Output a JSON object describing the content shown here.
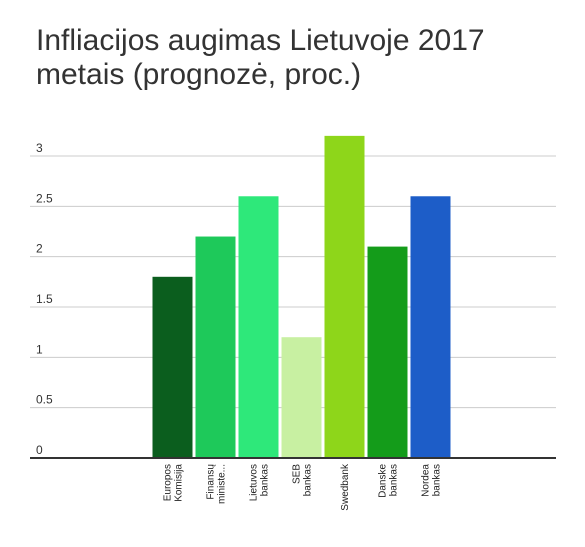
{
  "chart_data": {
    "type": "bar",
    "title": "Infliacijos augimas Lietuvoje 2017 metais (prognozė, proc.)",
    "categories": [
      [
        "Europos",
        "Komisija"
      ],
      [
        "Finansų",
        "ministe..."
      ],
      [
        "Lietuvos",
        "bankas"
      ],
      [
        "SEB",
        "bankas"
      ],
      [
        "Swedbank"
      ],
      [
        "Danske",
        "bankas"
      ],
      [
        "Nordea",
        "bankas"
      ]
    ],
    "values": [
      1.8,
      2.2,
      2.6,
      1.2,
      3.2,
      2.1,
      2.6
    ],
    "bar_colors": [
      "#0b5e1e",
      "#1ec95a",
      "#2ee87a",
      "#c8f0a2",
      "#8ed61a",
      "#149c1a",
      "#1d5dc8"
    ],
    "ylim": [
      0,
      3
    ],
    "yticks": [
      "0",
      "0.5",
      "1",
      "1.5",
      "2",
      "2.5",
      "3"
    ],
    "grid": true,
    "xlabel": "",
    "ylabel": ""
  }
}
